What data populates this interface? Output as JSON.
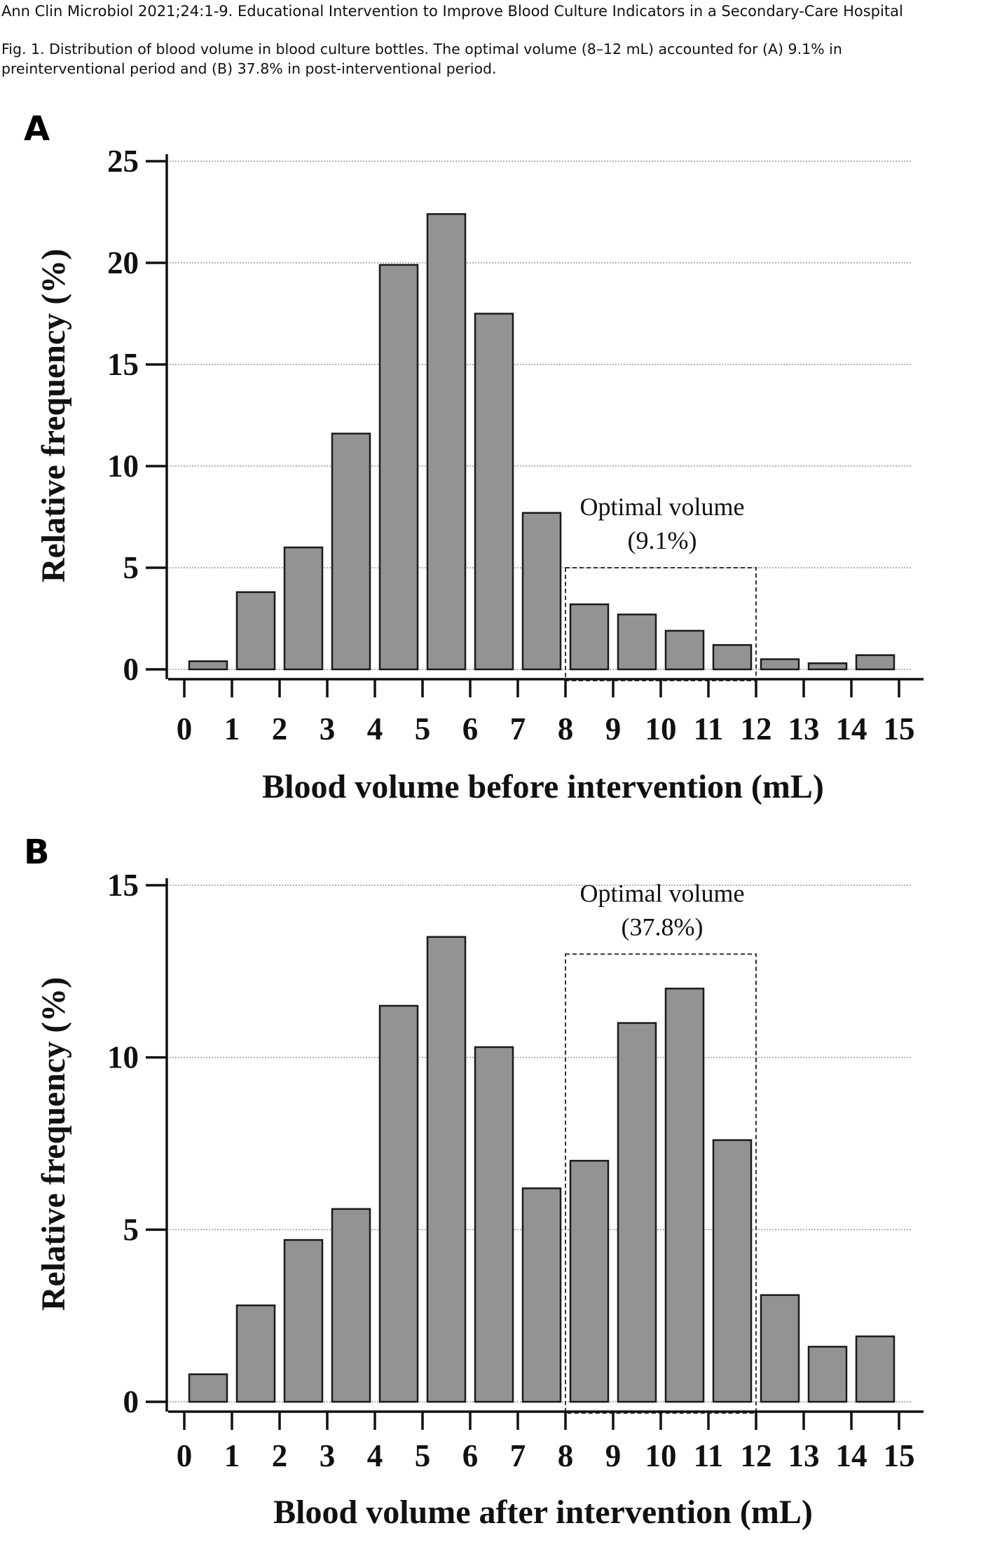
{
  "header": {
    "journal_line": "Ann Clin Microbiol 2021;24:1-9. Educational Intervention to Improve Blood Culture Indicators in a Secondary-Care Hospital",
    "caption": "Fig. 1. Distribution of blood volume in blood culture bottles. The optimal volume (8–12 mL) accounted for (A) 9.1% in preinterventional period and (B) 37.8% in post-interventional period."
  },
  "chart_data": [
    {
      "panel": "A",
      "type": "bar",
      "categories": [
        "0-1",
        "1-2",
        "2-3",
        "3-4",
        "4-5",
        "5-6",
        "6-7",
        "7-8",
        "8-9",
        "9-10",
        "10-11",
        "11-12",
        "12-13",
        "13-14",
        "14-15"
      ],
      "values": [
        0.4,
        3.8,
        6.0,
        11.6,
        19.9,
        22.4,
        17.5,
        7.7,
        3.2,
        2.7,
        1.9,
        1.2,
        0.5,
        0.3,
        0.7
      ],
      "x_ticks": [
        "0",
        "1",
        "2",
        "3",
        "4",
        "5",
        "6",
        "7",
        "8",
        "9",
        "10",
        "11",
        "12",
        "13",
        "14",
        "15"
      ],
      "y_ticks": [
        "0",
        "5",
        "10",
        "15",
        "20",
        "25"
      ],
      "ylim": [
        0,
        25
      ],
      "xlim": [
        0,
        15
      ],
      "xlabel": "Blood volume before intervention (mL)",
      "ylabel": "Relative frequency (%)",
      "grid": "horizontal dotted",
      "annotation": {
        "line1": "Optimal volume",
        "line2": "(9.1%)",
        "x_range": [
          8,
          12
        ],
        "box_top": 5
      }
    },
    {
      "panel": "B",
      "type": "bar",
      "categories": [
        "0-1",
        "1-2",
        "2-3",
        "3-4",
        "4-5",
        "5-6",
        "6-7",
        "7-8",
        "8-9",
        "9-10",
        "10-11",
        "11-12",
        "12-13",
        "13-14",
        "14-15"
      ],
      "values": [
        0.8,
        2.8,
        4.7,
        5.6,
        11.5,
        13.5,
        10.3,
        6.2,
        7.0,
        11.0,
        12.0,
        7.6,
        3.1,
        1.6,
        1.9
      ],
      "x_ticks": [
        "0",
        "1",
        "2",
        "3",
        "4",
        "5",
        "6",
        "7",
        "8",
        "9",
        "10",
        "11",
        "12",
        "13",
        "14",
        "15"
      ],
      "y_ticks": [
        "0",
        "5",
        "10",
        "15"
      ],
      "ylim": [
        0,
        15
      ],
      "xlim": [
        0,
        15
      ],
      "xlabel": "Blood volume after intervention (mL)",
      "ylabel": "Relative frequency (%)",
      "grid": "horizontal dotted",
      "annotation": {
        "line1": "Optimal volume",
        "line2": "(37.8%)",
        "x_range": [
          8,
          12
        ],
        "box_top": 13
      }
    }
  ]
}
